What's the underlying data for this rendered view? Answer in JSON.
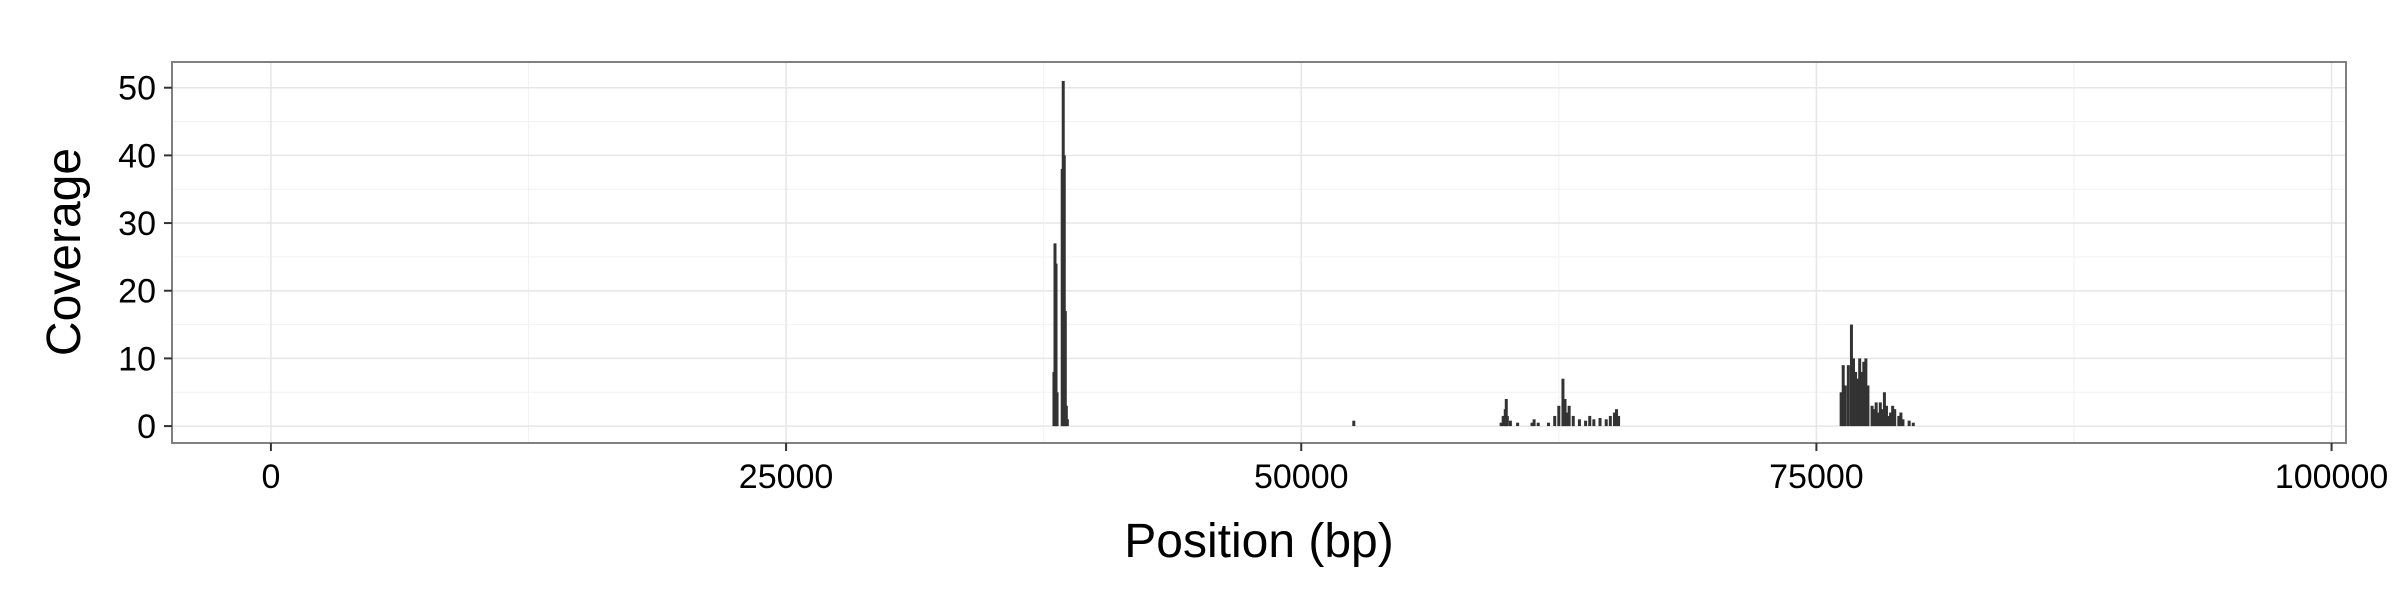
{
  "chart_data": {
    "type": "bar",
    "title": "",
    "xlabel": "Position (bp)",
    "ylabel": "Coverage",
    "xlim": [
      -4800,
      100700
    ],
    "ylim": [
      -2.5,
      53.8
    ],
    "xticks": [
      0,
      25000,
      50000,
      75000,
      100000
    ],
    "yticks": [
      0,
      10,
      20,
      30,
      40,
      50
    ],
    "xtick_labels": [
      "0",
      "25000",
      "50000",
      "75000",
      "100000"
    ],
    "ytick_labels": [
      "0",
      "10",
      "20",
      "30",
      "40",
      "50"
    ],
    "grid": true,
    "bar_color": "#333333",
    "series": [
      {
        "x": [
          38000,
          38050,
          38100,
          38150,
          38400,
          38450,
          38500,
          38550,
          38600,
          38650,
          52550,
          59700,
          59800,
          59900,
          59950,
          60000,
          60150,
          60500,
          61200,
          61300,
          61500,
          62000,
          62300,
          62500,
          62700,
          62800,
          62900,
          63000,
          63200,
          63500,
          63800,
          64000,
          64200,
          64500,
          64800,
          65000,
          65200,
          65300,
          65400,
          76200,
          76300,
          76400,
          76550,
          76700,
          76800,
          76900,
          77000,
          77100,
          77200,
          77300,
          77400,
          77500,
          77700,
          77800,
          77900,
          78000,
          78100,
          78200,
          78300,
          78400,
          78500,
          78600,
          78700,
          78800,
          79000,
          79100,
          79200,
          79500,
          79700
        ],
        "y": [
          8,
          27,
          24,
          5,
          38,
          51,
          40,
          17,
          3,
          1,
          0.8,
          0.5,
          1.5,
          2.5,
          4,
          1.5,
          0.8,
          0.5,
          0.5,
          1,
          0.5,
          0.5,
          1.5,
          3,
          7,
          4,
          2,
          3,
          1.5,
          1,
          0.8,
          1.5,
          1,
          1.2,
          1,
          1.5,
          2,
          2.5,
          1.5,
          5,
          9,
          6,
          9,
          15,
          10,
          8,
          7,
          10,
          8,
          9.5,
          10,
          6,
          3,
          2.5,
          3.5,
          2,
          3.5,
          2.5,
          5,
          3,
          1.5,
          2,
          3,
          2.5,
          1.5,
          2,
          1,
          0.8,
          0.5
        ]
      }
    ]
  }
}
